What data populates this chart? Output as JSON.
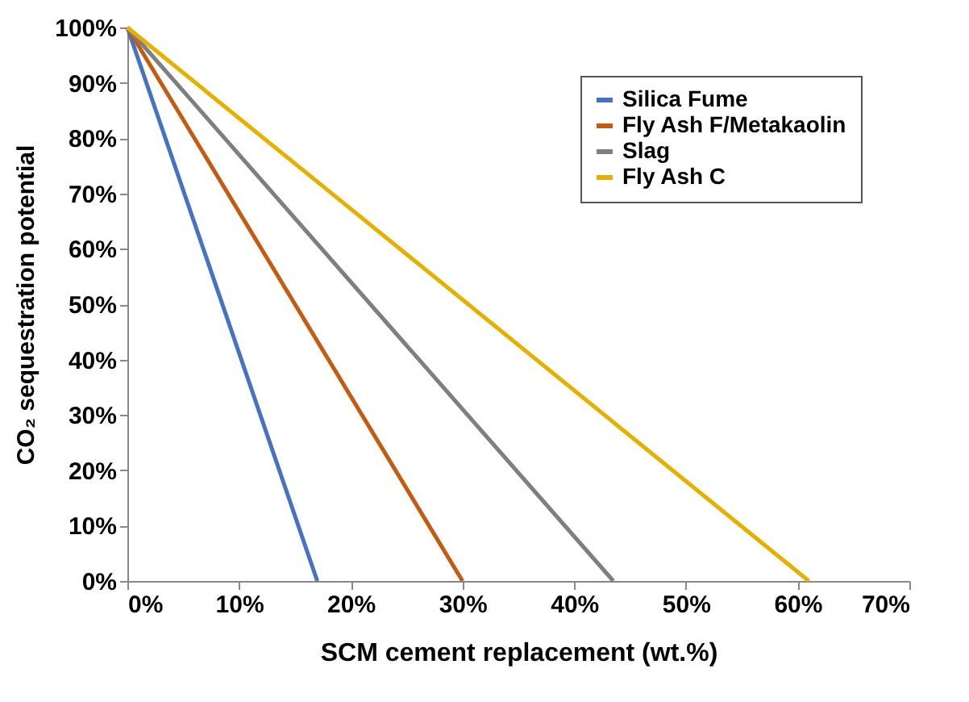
{
  "chart_data": {
    "type": "line",
    "xlabel": "SCM cement replacement (wt.%)",
    "ylabel": "CO₂ sequestration potential",
    "series": [
      {
        "name": "Silica Fume",
        "color": "#4472c4",
        "x": [
          0,
          17
        ],
        "values": [
          100,
          0
        ]
      },
      {
        "name": "Fly Ash F/Metakaolin",
        "color": "#c55a11",
        "x": [
          0,
          30
        ],
        "values": [
          100,
          0
        ]
      },
      {
        "name": "Slag",
        "color": "#7f7f7f",
        "x": [
          0,
          43.5
        ],
        "values": [
          100,
          0
        ]
      },
      {
        "name": "Fly Ash C",
        "color": "#e6b000",
        "x": [
          0,
          61
        ],
        "values": [
          100,
          0
        ]
      }
    ],
    "xlim": [
      0,
      70
    ],
    "ylim": [
      0,
      100
    ],
    "xticks": [
      {
        "value": 0,
        "label": "0%"
      },
      {
        "value": 10,
        "label": "10%"
      },
      {
        "value": 20,
        "label": "20%"
      },
      {
        "value": 30,
        "label": "30%"
      },
      {
        "value": 40,
        "label": "40%"
      },
      {
        "value": 50,
        "label": "50%"
      },
      {
        "value": 60,
        "label": "60%"
      },
      {
        "value": 70,
        "label": "70%"
      }
    ],
    "yticks": [
      {
        "value": 0,
        "label": "0%"
      },
      {
        "value": 10,
        "label": "10%"
      },
      {
        "value": 20,
        "label": "20%"
      },
      {
        "value": 30,
        "label": "30%"
      },
      {
        "value": 40,
        "label": "40%"
      },
      {
        "value": 50,
        "label": "50%"
      },
      {
        "value": 60,
        "label": "60%"
      },
      {
        "value": 70,
        "label": "70%"
      },
      {
        "value": 80,
        "label": "80%"
      },
      {
        "value": 90,
        "label": "90%"
      },
      {
        "value": 100,
        "label": "100%"
      }
    ],
    "grid": false,
    "legend": "top right",
    "marker": "none",
    "line_style": "solid"
  }
}
